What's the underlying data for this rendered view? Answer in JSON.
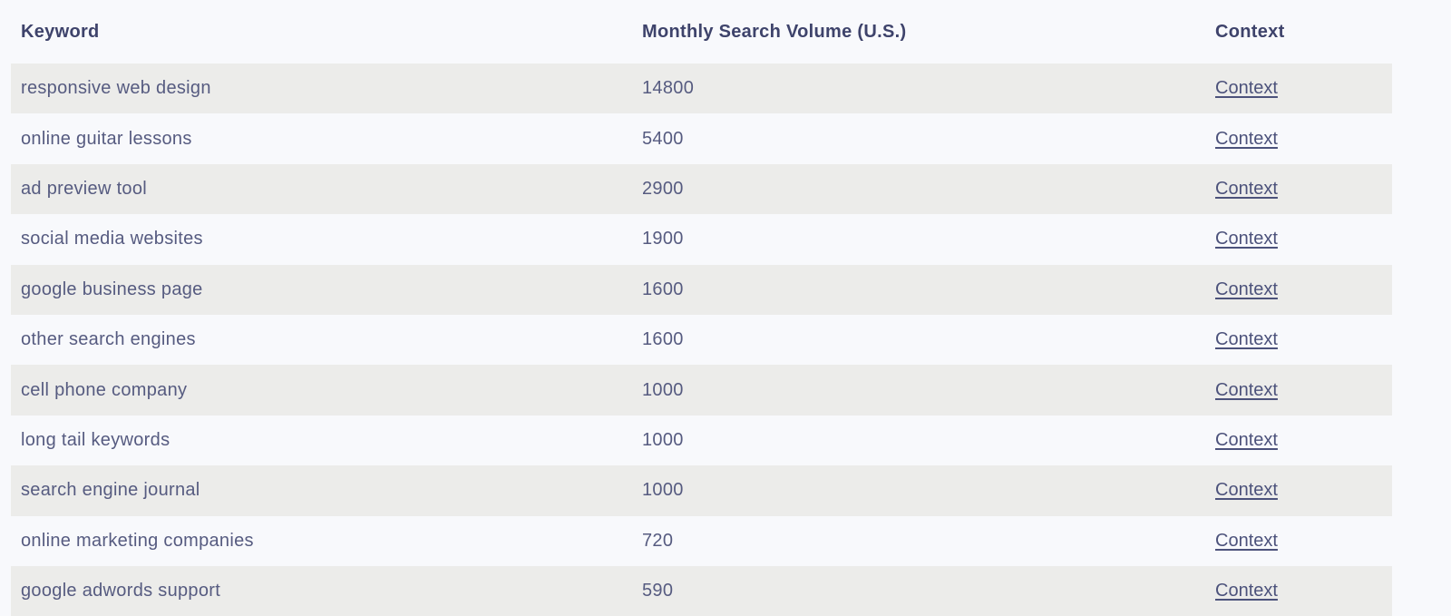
{
  "table": {
    "columns": [
      {
        "key": "keyword",
        "label": "Keyword"
      },
      {
        "key": "volume",
        "label": "Monthly Search Volume (U.S.)"
      },
      {
        "key": "context",
        "label": "Context"
      }
    ],
    "context_link_label": "Context",
    "rows": [
      {
        "keyword": "responsive web design",
        "volume": "14800"
      },
      {
        "keyword": "online guitar lessons",
        "volume": "5400"
      },
      {
        "keyword": "ad preview tool",
        "volume": "2900"
      },
      {
        "keyword": "social media websites",
        "volume": "1900"
      },
      {
        "keyword": "google business page",
        "volume": "1600"
      },
      {
        "keyword": "other search engines",
        "volume": "1600"
      },
      {
        "keyword": "cell phone company",
        "volume": "1000"
      },
      {
        "keyword": "long tail keywords",
        "volume": "1000"
      },
      {
        "keyword": "search engine journal",
        "volume": "1000"
      },
      {
        "keyword": "online marketing companies",
        "volume": "720"
      },
      {
        "keyword": "google adwords support",
        "volume": "590"
      }
    ]
  },
  "colors": {
    "page_background": "#f8f9fc",
    "stripe_background": "#ececea",
    "header_text": "#3e436b",
    "body_text": "#565b80",
    "link_text": "#4c527b"
  }
}
